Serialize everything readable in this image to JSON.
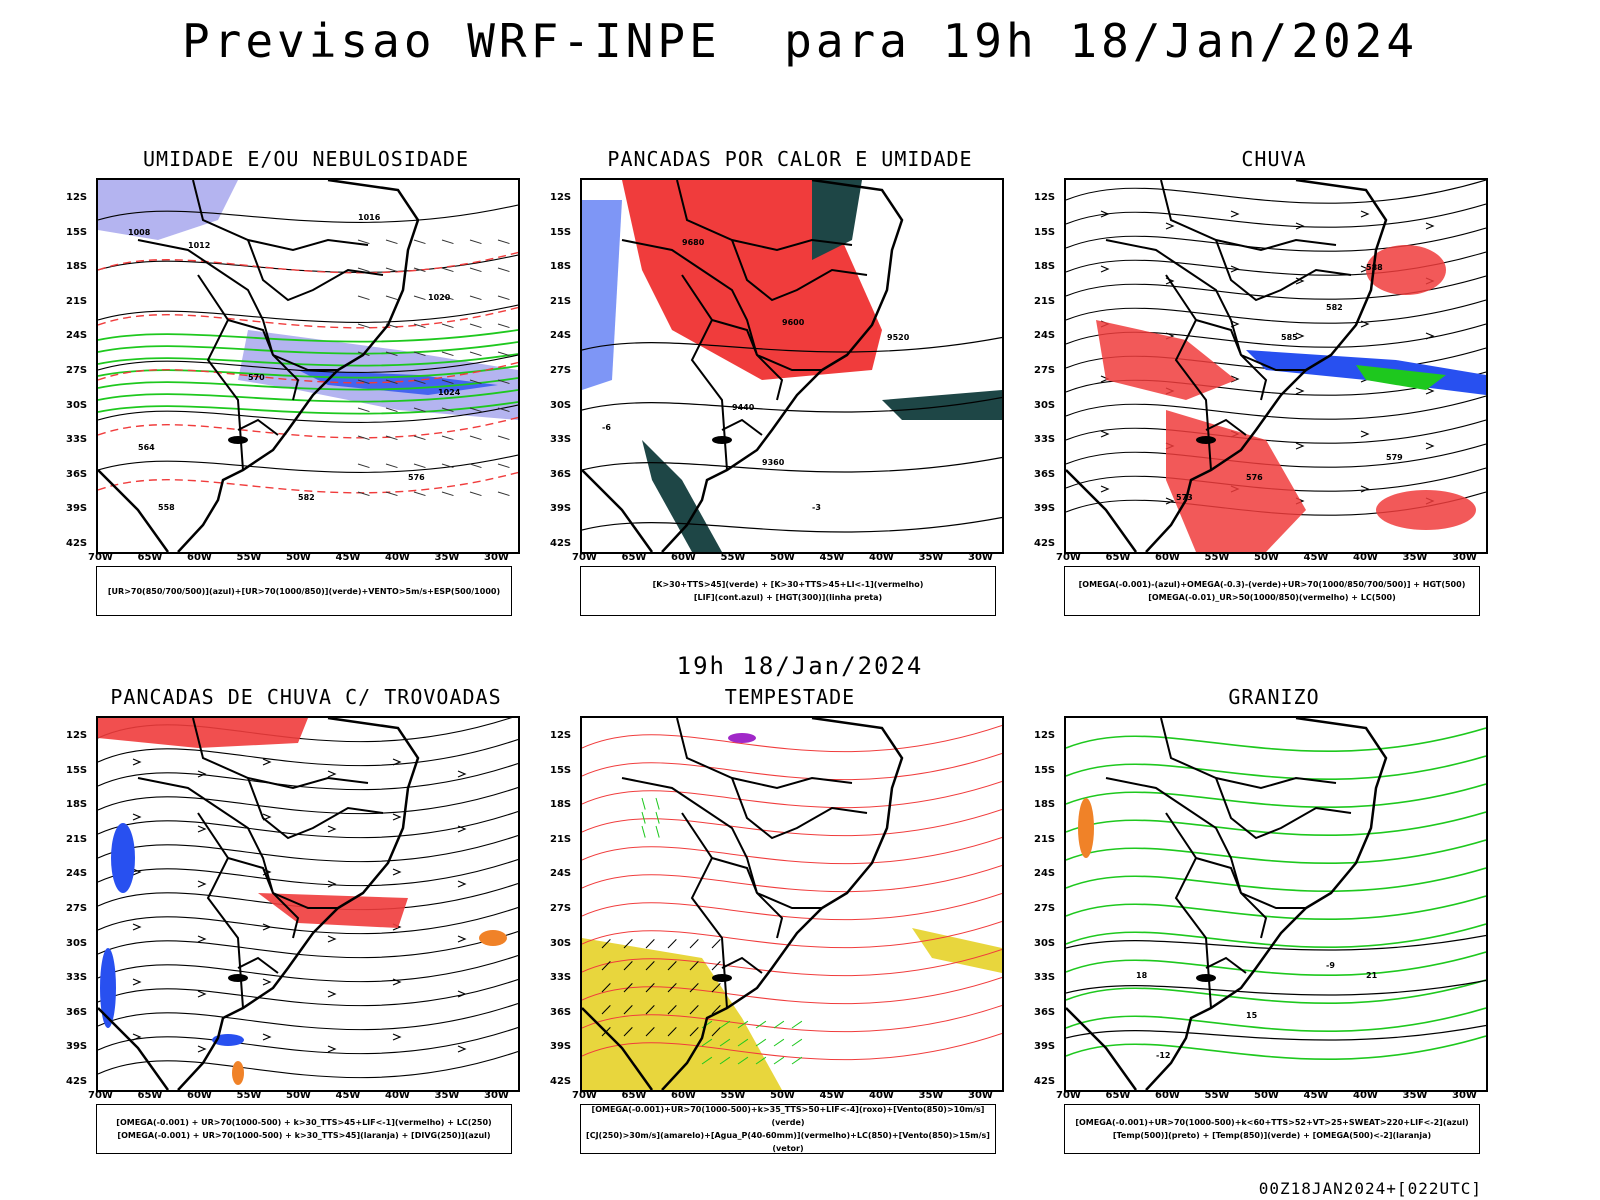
{
  "title": "Previsao WRF-INPE  para 19h 18/Jan/2024",
  "subtitle": "19h 18/Jan/2024",
  "footer": "00Z18JAN2024+[022UTC]",
  "axes": {
    "lat_labels": [
      "12S",
      "15S",
      "18S",
      "21S",
      "24S",
      "27S",
      "30S",
      "33S",
      "36S",
      "39S",
      "42S"
    ],
    "lon_labels": [
      "70W",
      "65W",
      "60W",
      "55W",
      "50W",
      "45W",
      "40W",
      "35W",
      "30W"
    ]
  },
  "panels": [
    {
      "id": "umidade",
      "title": "UMIDADE E/OU NEBULOSIDADE",
      "legend": [
        "[UR>70(850/700/500)](azul)+[UR>70(1000/850)](verde)+VENTO>5m/s+ESP(500/1000)"
      ],
      "contour_labels": [
        "1008",
        "1012",
        "1016",
        "1020",
        "1024",
        "576",
        "570",
        "564",
        "558",
        "582"
      ]
    },
    {
      "id": "pancadas-calor",
      "title": "PANCADAS POR CALOR E UMIDADE",
      "legend": [
        "[K>30+TTS>45](verde) + [K>30+TTS>45+LI<-1](vermelho)",
        "[LIF](cont.azul) + [HGT(300)](linha preta)"
      ],
      "contour_labels": [
        "9680",
        "9600",
        "9520",
        "9440",
        "9360",
        "-3",
        "-6"
      ]
    },
    {
      "id": "chuva",
      "title": "CHUVA",
      "legend": [
        "[OMEGA(-0.001)-(azul)+OMEGA(-0.3)-(verde)+UR>70(1000/850/700/500)] + HGT(500)",
        "[OMEGA(-0.01)_UR>50(1000/850)(vermelho) + LC(500)"
      ],
      "contour_labels": [
        "588",
        "585",
        "582",
        "579",
        "576",
        "573"
      ]
    },
    {
      "id": "pancadas-trovoadas",
      "title": "PANCADAS DE CHUVA C/ TROVOADAS",
      "legend": [
        "[OMEGA(-0.001) + UR>70(1000-500) + k>30_TTS>45+LIF<-1](vermelho) + LC(250)",
        "[OMEGA(-0.001) + UR>70(1000-500) + k>30_TTS>45](laranja) + [DIVG(250)](azul)"
      ],
      "contour_labels": []
    },
    {
      "id": "tempestade",
      "title": "TEMPESTADE",
      "legend": [
        "[OMEGA(-0.001)+UR>70(1000-500)+k>35_TTS>50+LIF<-4](roxo)+[Vento(850)>10m/s](verde)",
        "[CJ(250)>30m/s](amarelo)+[Agua_P(40-60mm)](vermelho)+LC(850)+[Vento(850)>15m/s](vetor)"
      ],
      "contour_labels": []
    },
    {
      "id": "granizo",
      "title": "GRANIZO",
      "legend": [
        "[OMEGA(-0.001)+UR>70(1000-500)+k<60+TTS>52+VT>25+SWEAT>220+LIF<-2](azul)",
        "[Temp(500)](preto) + [Temp(850)](verde) + [OMEGA(500)<-2](laranja)"
      ],
      "contour_labels": [
        "-12",
        "-9",
        "15",
        "18",
        "21"
      ]
    }
  ],
  "colors": {
    "red": "#f03c3c",
    "green": "#1ec81e",
    "blue": "#2850f0",
    "lavender": "#b4b4f0",
    "darkteal": "#1e4646",
    "yellow": "#e6d228",
    "orange": "#f08228",
    "purple": "#a028c8",
    "black": "#000000"
  }
}
